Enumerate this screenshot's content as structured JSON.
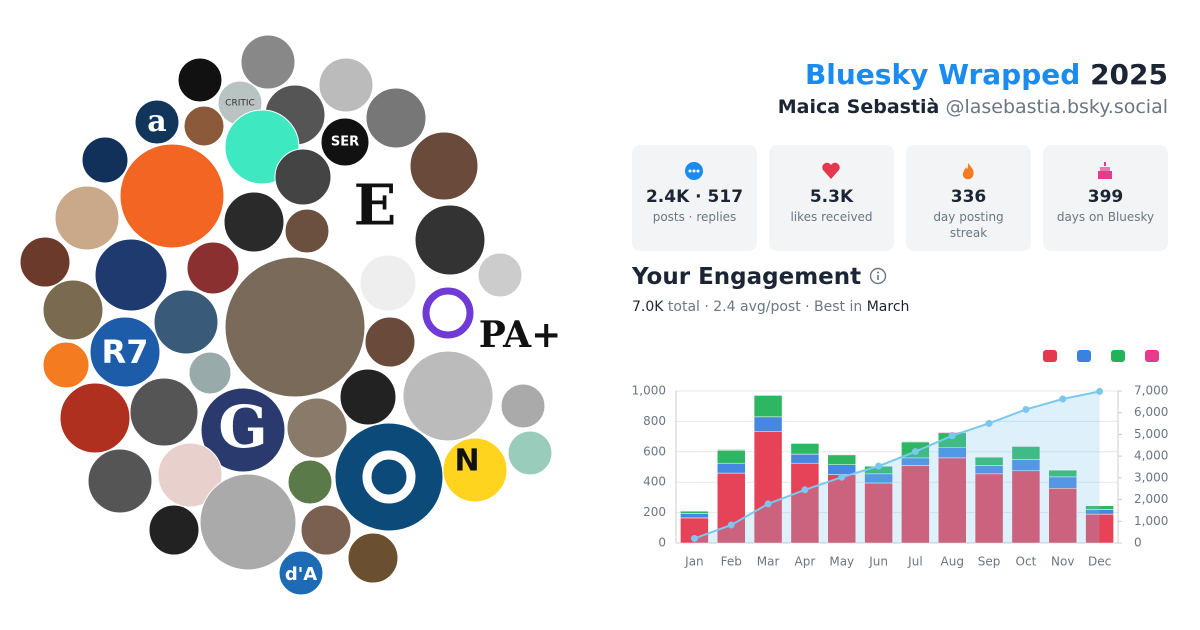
{
  "header": {
    "title_brand": "Bluesky Wrapped",
    "title_year": "2025",
    "display_name": "Maica Sebastià",
    "handle": "@lasebastia.bsky.social"
  },
  "stats": [
    {
      "value": "2.4K · 517",
      "label": "posts · replies"
    },
    {
      "value": "5.3K",
      "label": "likes received"
    },
    {
      "value": "336",
      "label": "day posting streak"
    },
    {
      "value": "399",
      "label": "days on Bluesky"
    }
  ],
  "engagement": {
    "title": "Your Engagement",
    "total": "7.0K",
    "summary": "total · 2.4 avg/post · Best in",
    "best_month": "March"
  },
  "logos": [
    "a",
    "CRITIC",
    "SER",
    "E",
    "R7",
    "G",
    "N",
    "PA+",
    "d'A"
  ],
  "chart_data": {
    "type": "stacked-bar-line",
    "categories": [
      "Jan",
      "Feb",
      "Mar",
      "Apr",
      "May",
      "Jun",
      "Jul",
      "Aug",
      "Sep",
      "Oct",
      "Nov",
      "Dec"
    ],
    "series": [
      {
        "color": "#e5384f",
        "values": [
          165,
          460,
          735,
          525,
          450,
          395,
          510,
          560,
          455,
          475,
          360,
          190
        ]
      },
      {
        "color": "#3b82e0",
        "values": [
          30,
          65,
          95,
          60,
          65,
          60,
          50,
          70,
          55,
          75,
          75,
          30
        ]
      },
      {
        "color": "#22b35a",
        "values": [
          15,
          85,
          140,
          70,
          65,
          50,
          105,
          95,
          55,
          85,
          45,
          25
        ]
      },
      {
        "color": "#e63b8a",
        "values": [
          3,
          5,
          5,
          4,
          4,
          3,
          4,
          5,
          3,
          4,
          3,
          2
        ]
      },
      {
        "color": "#7cc7ee",
        "type": "line",
        "axis": "y2",
        "values": [
          210,
          830,
          1800,
          2450,
          3030,
          3540,
          4210,
          4940,
          5510,
          6150,
          6630,
          6980
        ]
      }
    ],
    "ylim": [
      0,
      1000
    ],
    "yticks": [
      0,
      200,
      400,
      600,
      800,
      {
        "value": 1000,
        "label": "1,000"
      }
    ],
    "y2lim": [
      0,
      7000
    ],
    "y2ticks": [
      0,
      {
        "value": 1000,
        "label": "1,000"
      },
      {
        "value": 2000,
        "label": "2,000"
      },
      {
        "value": 3000,
        "label": "3,000"
      },
      {
        "value": 4000,
        "label": "4,000"
      },
      {
        "value": 5000,
        "label": "5,000"
      },
      {
        "value": 6000,
        "label": "6,000"
      },
      {
        "value": 7000,
        "label": "7,000"
      }
    ],
    "grid": true
  }
}
